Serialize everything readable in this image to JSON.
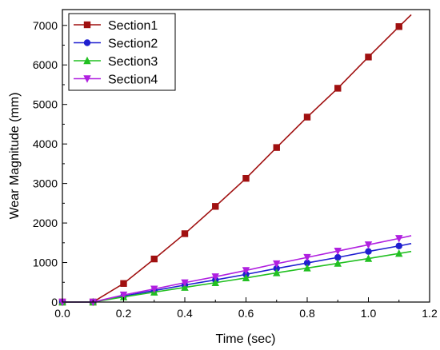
{
  "chart_data": {
    "type": "line",
    "xlabel": "Time (sec)",
    "ylabel": "Wear Magnitude (mm)",
    "xlim": [
      0.0,
      1.2
    ],
    "ylim": [
      0,
      7400
    ],
    "xticks": [
      0.0,
      0.2,
      0.4,
      0.6,
      0.8,
      1.0,
      1.2
    ],
    "xtick_labels": [
      "0.0",
      "0.2",
      "0.4",
      "0.6",
      "0.8",
      "1.0",
      "1.2"
    ],
    "yticks": [
      0,
      1000,
      2000,
      3000,
      4000,
      5000,
      6000,
      7000
    ],
    "ytick_labels": [
      "0",
      "1000",
      "2000",
      "3000",
      "4000",
      "5000",
      "6000",
      "7000"
    ],
    "grid": false,
    "legend_position": "top-left",
    "x": [
      0.0,
      0.1,
      0.2,
      0.3,
      0.4,
      0.5,
      0.6,
      0.7,
      0.8,
      0.9,
      1.0,
      1.1
    ],
    "series": [
      {
        "name": "Section1",
        "color": "#a01010",
        "marker": "square",
        "values": [
          0,
          0,
          470,
          1090,
          1730,
          2420,
          3130,
          3910,
          4680,
          5410,
          6200,
          6970
        ],
        "line_end": [
          1.14,
          7270
        ]
      },
      {
        "name": "Section2",
        "color": "#1f1fd0",
        "marker": "circle",
        "values": [
          0,
          0,
          150,
          290,
          430,
          560,
          700,
          850,
          990,
          1130,
          1280,
          1420
        ],
        "line_end": [
          1.14,
          1480
        ]
      },
      {
        "name": "Section3",
        "color": "#22c022",
        "marker": "triangle-up",
        "values": [
          0,
          0,
          130,
          250,
          370,
          490,
          610,
          740,
          860,
          980,
          1100,
          1230
        ],
        "line_end": [
          1.14,
          1280
        ]
      },
      {
        "name": "Section4",
        "color": "#b020e0",
        "marker": "triangle-down",
        "values": [
          0,
          0,
          180,
          330,
          490,
          640,
          800,
          970,
          1130,
          1290,
          1450,
          1610
        ],
        "line_end": [
          1.14,
          1680
        ]
      }
    ]
  }
}
